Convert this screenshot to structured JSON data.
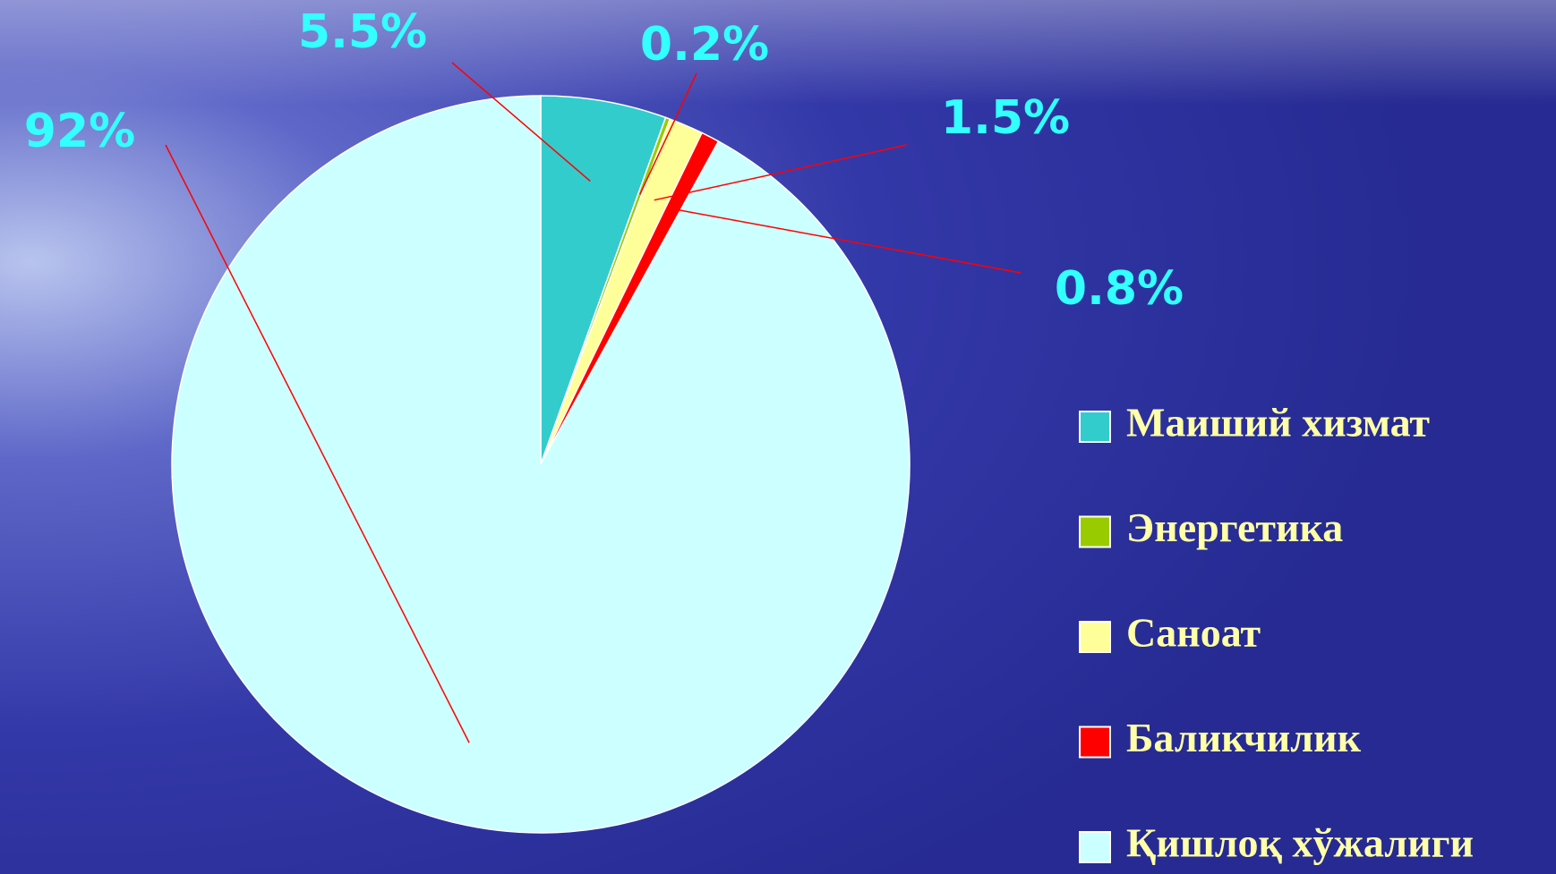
{
  "chart_data": {
    "type": "pie",
    "categories": [
      "Маиший хизмат",
      "Энергетика",
      "Саноат",
      "Баликчилик",
      "Қишлоқ хўжалиги"
    ],
    "values": [
      5.5,
      0.2,
      1.5,
      0.8,
      92
    ],
    "value_labels": [
      "5.5%",
      "0.2%",
      "1.5%",
      "0.8%",
      "92%"
    ],
    "colors": [
      "#33cccc",
      "#99cc00",
      "#ffff99",
      "#ff0000",
      "#ccffff"
    ],
    "legend": "right"
  }
}
